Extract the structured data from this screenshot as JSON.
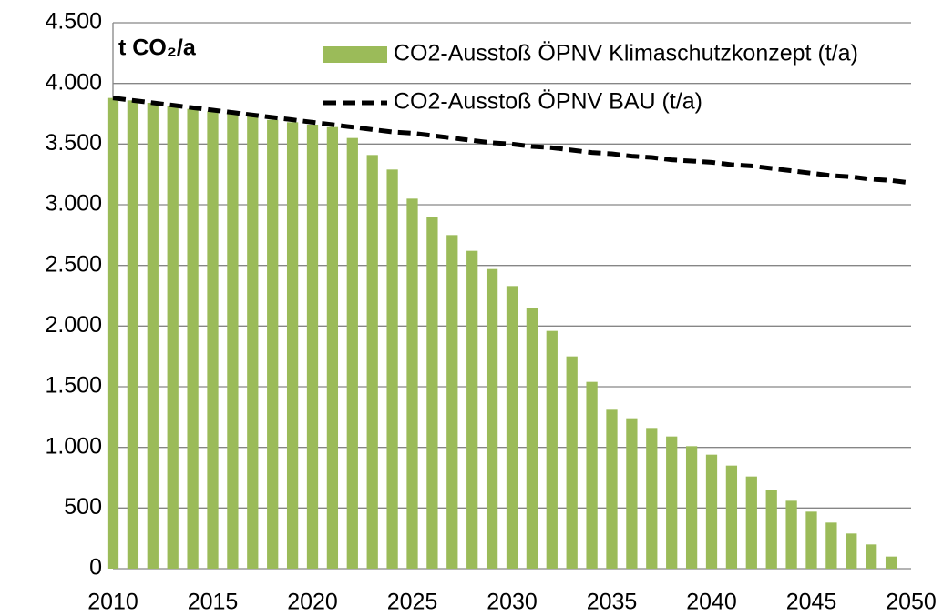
{
  "chart_data": {
    "type": "bar_line",
    "title": "t CO₂/a",
    "series": [
      {
        "name": "CO2-Ausstoß ÖPNV Klimaschutzkonzept  (t/a)",
        "type": "bar",
        "color": "#9bbb59",
        "x": [
          2010,
          2011,
          2012,
          2013,
          2014,
          2015,
          2016,
          2017,
          2018,
          2019,
          2020,
          2021,
          2022,
          2023,
          2024,
          2025,
          2026,
          2027,
          2028,
          2029,
          2030,
          2031,
          2032,
          2033,
          2034,
          2035,
          2036,
          2037,
          2038,
          2039,
          2040,
          2041,
          2042,
          2043,
          2044,
          2045,
          2046,
          2047,
          2048,
          2049
        ],
        "values": [
          3880,
          3860,
          3840,
          3810,
          3790,
          3770,
          3750,
          3730,
          3700,
          3680,
          3660,
          3640,
          3550,
          3410,
          3290,
          3050,
          2900,
          2750,
          2620,
          2470,
          2330,
          2150,
          1960,
          1750,
          1540,
          1310,
          1240,
          1160,
          1090,
          1010,
          940,
          850,
          760,
          650,
          560,
          470,
          380,
          290,
          200,
          100
        ]
      },
      {
        "name": "CO2-Ausstoß ÖPNV BAU (t/a)",
        "type": "line",
        "color": "#000000",
        "x": [
          2010,
          2011,
          2012,
          2013,
          2014,
          2015,
          2016,
          2017,
          2018,
          2019,
          2020,
          2021,
          2022,
          2023,
          2024,
          2025,
          2026,
          2027,
          2028,
          2029,
          2030,
          2031,
          2032,
          2033,
          2034,
          2035,
          2036,
          2037,
          2038,
          2039,
          2040,
          2041,
          2042,
          2043,
          2044,
          2045,
          2046,
          2047,
          2048,
          2049,
          2050
        ],
        "values": [
          3880,
          3860,
          3840,
          3820,
          3800,
          3780,
          3760,
          3740,
          3720,
          3700,
          3680,
          3660,
          3640,
          3620,
          3600,
          3590,
          3570,
          3550,
          3530,
          3510,
          3500,
          3480,
          3470,
          3450,
          3430,
          3420,
          3400,
          3390,
          3370,
          3360,
          3350,
          3330,
          3320,
          3300,
          3280,
          3260,
          3240,
          3230,
          3210,
          3200,
          3180
        ]
      }
    ],
    "xlim": [
      2010,
      2050
    ],
    "xticks": [
      2010,
      2015,
      2020,
      2025,
      2030,
      2035,
      2040,
      2045,
      2050
    ],
    "ylim": [
      0,
      4500
    ],
    "yticks": [
      0,
      500,
      {
        "value": 1000,
        "label": "1.000"
      },
      {
        "value": 1500,
        "label": "1.500"
      },
      {
        "value": 2000,
        "label": "2.000"
      },
      {
        "value": 2500,
        "label": "2.500"
      },
      {
        "value": 3000,
        "label": "3.000"
      },
      {
        "value": 3500,
        "label": "3.500"
      },
      {
        "value": 4000,
        "label": "4.000"
      },
      {
        "value": 4500,
        "label": "4.500"
      }
    ],
    "grid": true,
    "legend": "top-right"
  }
}
